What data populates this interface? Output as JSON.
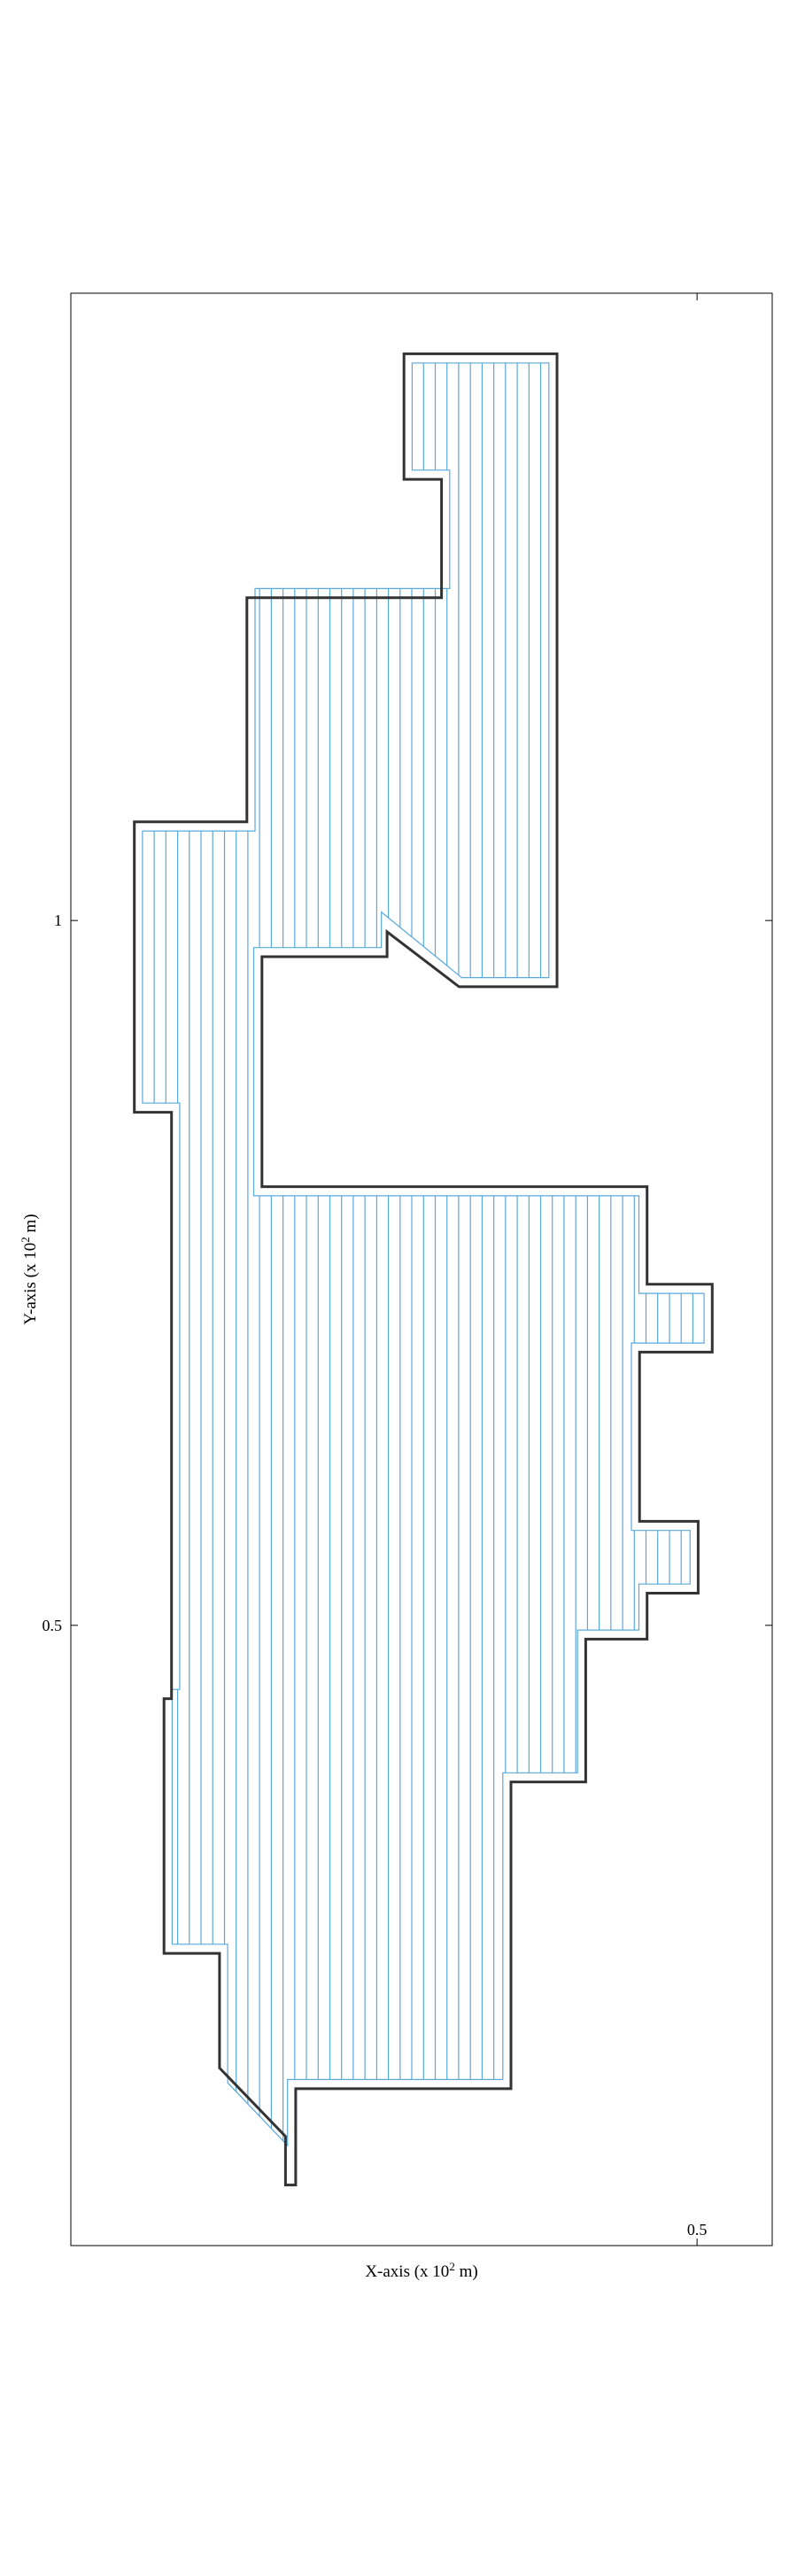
{
  "chart_data": {
    "type": "coverage-path-diagram",
    "xlabel": "X-axis (x 10^2 m)",
    "ylabel": "Y-axis (x 10^2 m)",
    "xlim": [
      0.0,
      0.56
    ],
    "ylim": [
      0.06,
      1.445
    ],
    "xticks": [
      0.5
    ],
    "xtick_labels": [
      "0.5"
    ],
    "yticks": [
      0.5,
      1.0
    ],
    "ytick_labels": [
      "0.5",
      "1"
    ],
    "grid": false,
    "legend": "none",
    "boundary_color": "#333333",
    "path_color": "#5aa9dc",
    "hatch_spacing": 0.00935,
    "region_outer": [
      [
        0.266,
        1.402
      ],
      [
        0.3882,
        1.402
      ],
      [
        0.3882,
        0.953
      ],
      [
        0.3099,
        0.953
      ],
      [
        0.2525,
        0.992
      ],
      [
        0.2525,
        0.9743
      ],
      [
        0.1526,
        0.9743
      ],
      [
        0.1526,
        0.8112
      ],
      [
        0.4601,
        0.8112
      ],
      [
        0.4601,
        0.742
      ],
      [
        0.5121,
        0.742
      ],
      [
        0.5121,
        0.6938
      ],
      [
        0.4541,
        0.6938
      ],
      [
        0.4541,
        0.5738
      ],
      [
        0.5009,
        0.5738
      ],
      [
        0.5009,
        0.5228
      ],
      [
        0.4601,
        0.5228
      ],
      [
        0.4601,
        0.4902
      ],
      [
        0.4111,
        0.4902
      ],
      [
        0.4111,
        0.3889
      ],
      [
        0.3514,
        0.3889
      ],
      [
        0.3514,
        0.1713
      ],
      [
        0.1795,
        0.1713
      ],
      [
        0.1795,
        0.103
      ],
      [
        0.1714,
        0.103
      ],
      [
        0.1714,
        0.1375
      ],
      [
        0.1187,
        0.186
      ],
      [
        0.1187,
        0.2673
      ],
      [
        0.0744,
        0.2673
      ],
      [
        0.0744,
        0.448
      ],
      [
        0.0804,
        0.448
      ],
      [
        0.0804,
        0.864
      ],
      [
        0.0507,
        0.864
      ],
      [
        0.0507,
        1.07
      ],
      [
        0.1406,
        1.07
      ],
      [
        0.1406,
        1.229
      ],
      [
        0.296,
        1.229
      ],
      [
        0.296,
        1.313
      ],
      [
        0.266,
        1.313
      ]
    ],
    "region_inner": [
      [
        0.2725,
        1.3955
      ],
      [
        0.3817,
        1.3955
      ],
      [
        0.3817,
        0.9595
      ],
      [
        0.312,
        0.9595
      ],
      [
        0.248,
        1.006
      ],
      [
        0.248,
        0.9808
      ],
      [
        0.146,
        0.9808
      ],
      [
        0.146,
        0.8047
      ],
      [
        0.4536,
        0.8047
      ],
      [
        0.4536,
        0.7355
      ],
      [
        0.5056,
        0.7355
      ],
      [
        0.5056,
        0.7003
      ],
      [
        0.4476,
        0.7003
      ],
      [
        0.4476,
        0.5673
      ],
      [
        0.4944,
        0.5673
      ],
      [
        0.4944,
        0.5293
      ],
      [
        0.4536,
        0.5293
      ],
      [
        0.4536,
        0.4967
      ],
      [
        0.4046,
        0.4967
      ],
      [
        0.4046,
        0.3954
      ],
      [
        0.3449,
        0.3954
      ],
      [
        0.3449,
        0.1778
      ],
      [
        0.173,
        0.1778
      ],
      [
        0.173,
        0.131
      ],
      [
        0.1252,
        0.1755
      ],
      [
        0.1252,
        0.2738
      ],
      [
        0.0809,
        0.2738
      ],
      [
        0.0809,
        0.4545
      ],
      [
        0.0869,
        0.4545
      ],
      [
        0.0869,
        0.8705
      ],
      [
        0.0572,
        0.8705
      ],
      [
        0.0572,
        1.0635
      ],
      [
        0.1471,
        1.0635
      ],
      [
        0.1471,
        1.2355
      ],
      [
        0.3025,
        1.2355
      ],
      [
        0.3025,
        1.3195
      ],
      [
        0.2725,
        1.3195
      ]
    ]
  }
}
